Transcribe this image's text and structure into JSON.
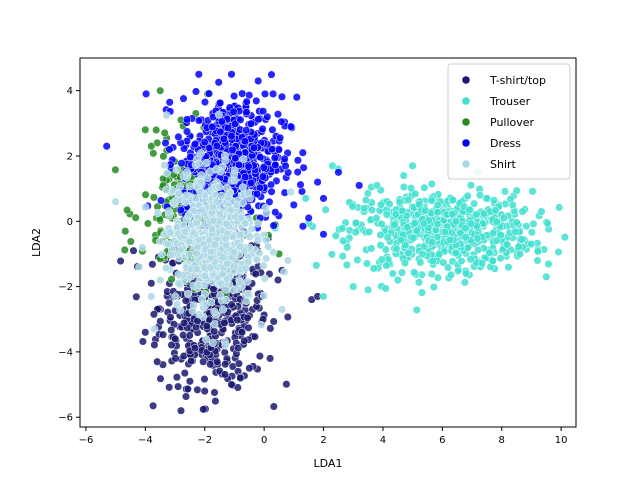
{
  "chart_data": {
    "type": "scatter",
    "title": "",
    "xlabel": "LDA1",
    "ylabel": "LDA2",
    "xlim": [
      -6.2,
      10.5
    ],
    "ylim": [
      -6.3,
      5.0
    ],
    "xticks": [
      -6,
      -4,
      -2,
      0,
      2,
      4,
      6,
      8,
      10
    ],
    "yticks": [
      -6,
      -4,
      -2,
      0,
      2,
      4
    ],
    "legend_position": "top-right",
    "grid": false,
    "series": [
      {
        "name": "T-shirt/top",
        "color": "#191970",
        "cluster": {
          "center": [
            -1.7,
            -2.6
          ],
          "spread": [
            0.9,
            1.2
          ],
          "count": 520
        },
        "points": [
          [
            -2.8,
            -5.8
          ],
          [
            -1.1,
            -5.0
          ],
          [
            -3.6,
            -4.3
          ],
          [
            0.2,
            -4.2
          ],
          [
            -4.0,
            -3.4
          ],
          [
            -0.5,
            -4.5
          ],
          [
            -3.2,
            -2.5
          ],
          [
            1.6,
            -2.4
          ],
          [
            -3.8,
            -1.9
          ],
          [
            -2.0,
            -5.2
          ],
          [
            -0.8,
            -4.8
          ],
          [
            -2.5,
            -4.9
          ],
          [
            -4.4,
            -0.9
          ],
          [
            0.6,
            -1.5
          ],
          [
            1.8,
            -2.3
          ]
        ]
      },
      {
        "name": "Trouser",
        "color": "#40e0d0",
        "cluster": {
          "center": [
            6.0,
            -0.3
          ],
          "spread": [
            1.5,
            0.6
          ],
          "count": 650
        },
        "points": [
          [
            9.5,
            -1.7
          ],
          [
            9.2,
            -1.2
          ],
          [
            2.3,
            1.7
          ],
          [
            2.5,
            1.6
          ],
          [
            3.0,
            -2.0
          ],
          [
            3.5,
            -2.1
          ],
          [
            4.5,
            -1.8
          ],
          [
            5.0,
            1.7
          ],
          [
            4.7,
            1.4
          ],
          [
            8.7,
            0.3
          ],
          [
            7.2,
            1.5
          ],
          [
            2.0,
            -2.3
          ],
          [
            3.8,
            1.1
          ],
          [
            9.0,
            -0.7
          ],
          [
            1.4,
            0.7
          ],
          [
            2.8,
            -0.8
          ],
          [
            6.8,
            -1.6
          ]
        ]
      },
      {
        "name": "Pullover",
        "color": "#228b22",
        "cluster": {
          "center": [
            -2.3,
            0.3
          ],
          "spread": [
            0.9,
            1.0
          ],
          "count": 260
        },
        "points": [
          [
            -3.5,
            4.0
          ],
          [
            -2.3,
            3.3
          ],
          [
            -1.9,
            3.9
          ],
          [
            -2.8,
            3.1
          ],
          [
            -4.0,
            2.8
          ],
          [
            -3.6,
            2.4
          ],
          [
            -3.8,
            2.3
          ],
          [
            -3.4,
            1.3
          ],
          [
            -3.3,
            0.6
          ],
          [
            -2.5,
            2.6
          ],
          [
            0.5,
            -1.0
          ],
          [
            -3.4,
            1.1
          ]
        ]
      },
      {
        "name": "Dress",
        "color": "#0000ff",
        "cluster": {
          "center": [
            -1.1,
            1.9
          ],
          "spread": [
            0.85,
            0.95
          ],
          "count": 620
        },
        "points": [
          [
            -5.3,
            2.3
          ],
          [
            -2.2,
            4.5
          ],
          [
            -1.1,
            4.5
          ],
          [
            -0.2,
            4.3
          ],
          [
            1.1,
            3.8
          ],
          [
            0.9,
            2.9
          ],
          [
            1.3,
            2.1
          ],
          [
            1.8,
            1.2
          ],
          [
            2.0,
            0.7
          ],
          [
            2.5,
            1.5
          ],
          [
            3.2,
            1.1
          ],
          [
            2.0,
            -0.4
          ],
          [
            1.0,
            0.5
          ],
          [
            1.5,
            0.1
          ],
          [
            0.3,
            3.9
          ]
        ]
      },
      {
        "name": "Shirt",
        "color": "#add8e6",
        "cluster": {
          "center": [
            -1.8,
            -0.5
          ],
          "spread": [
            0.75,
            1.05
          ],
          "count": 560
        },
        "points": [
          [
            -5.0,
            0.6
          ],
          [
            -4.2,
            -1.4
          ],
          [
            -4.1,
            -0.8
          ],
          [
            -3.8,
            -2.3
          ],
          [
            -3.7,
            -3.3
          ],
          [
            0.8,
            -1.2
          ],
          [
            0.6,
            -2.7
          ],
          [
            -1.3,
            -3.8
          ],
          [
            -0.7,
            1.9
          ],
          [
            -2.6,
            1.5
          ],
          [
            0.9,
            0.9
          ],
          [
            -3.5,
            -1.8
          ]
        ]
      }
    ]
  }
}
